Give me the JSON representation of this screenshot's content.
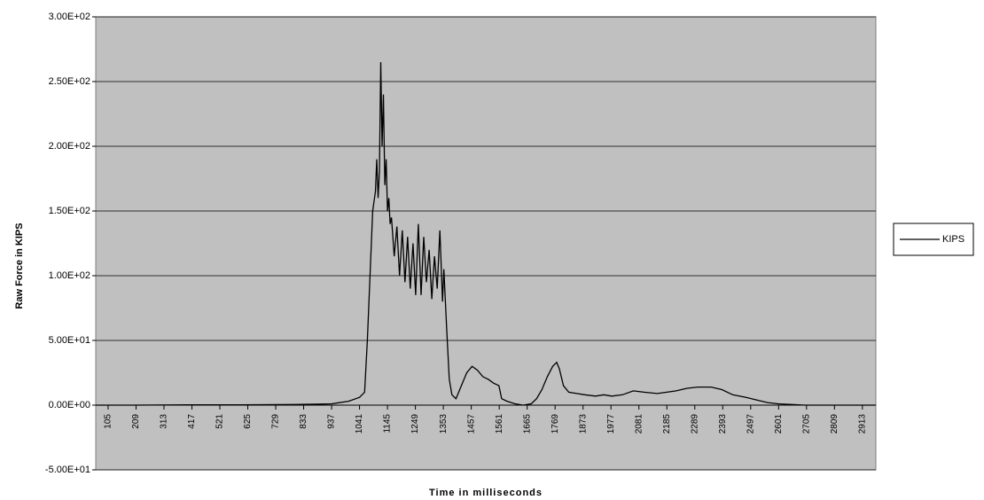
{
  "chart_data": {
    "type": "line",
    "y_label": "Raw Force in KIPS",
    "x_label": "Time in milliseconds",
    "x": [
      59,
      200,
      400,
      600,
      800,
      900,
      937,
      1000,
      1041,
      1060,
      1070,
      1080,
      1090,
      1100,
      1105,
      1110,
      1115,
      1120,
      1125,
      1130,
      1135,
      1140,
      1145,
      1150,
      1155,
      1160,
      1170,
      1180,
      1190,
      1200,
      1210,
      1220,
      1230,
      1240,
      1250,
      1260,
      1270,
      1280,
      1290,
      1300,
      1310,
      1320,
      1330,
      1340,
      1350,
      1355,
      1365,
      1375,
      1385,
      1400,
      1420,
      1440,
      1460,
      1480,
      1500,
      1520,
      1540,
      1560,
      1570,
      1590,
      1620,
      1650,
      1680,
      1700,
      1720,
      1740,
      1760,
      1775,
      1785,
      1800,
      1820,
      1850,
      1880,
      1920,
      1950,
      1980,
      2020,
      2060,
      2100,
      2150,
      2185,
      2220,
      2260,
      2300,
      2350,
      2390,
      2430,
      2480,
      2520,
      2560,
      2600,
      2650,
      2700,
      2800,
      2963
    ],
    "series": [
      {
        "name": "KIPS",
        "color": "#000000",
        "values": [
          0,
          0,
          0.3,
          0.3,
          0.5,
          0.8,
          1,
          3,
          6,
          10,
          50,
          100,
          150,
          165,
          190,
          160,
          180,
          265,
          200,
          240,
          170,
          190,
          150,
          160,
          140,
          145,
          115,
          138,
          100,
          135,
          95,
          130,
          90,
          125,
          85,
          140,
          85,
          130,
          95,
          120,
          82,
          115,
          90,
          135,
          80,
          105,
          60,
          20,
          8,
          5,
          15,
          25,
          30,
          27,
          22,
          20,
          17,
          15,
          5,
          3,
          1,
          0,
          1,
          5,
          12,
          22,
          30,
          33,
          28,
          15,
          10,
          9,
          8,
          7,
          8,
          7,
          8,
          11,
          10,
          9,
          10,
          11,
          13,
          14,
          14,
          12,
          8,
          6,
          4,
          2,
          1,
          0.5,
          0,
          0,
          0
        ]
      }
    ],
    "xlim": [
      59,
      2963
    ],
    "xticks": [
      105,
      209,
      313,
      417,
      521,
      625,
      729,
      833,
      937,
      1041,
      1145,
      1249,
      1353,
      1457,
      1561,
      1665,
      1769,
      1873,
      1977,
      2081,
      2185,
      2289,
      2393,
      2497,
      2601,
      2705,
      2809,
      2913
    ],
    "ylim": [
      -50,
      300
    ],
    "yticks": [
      {
        "value": -50,
        "label": "-5.00E+01"
      },
      {
        "value": 0,
        "label": "0.00E+00"
      },
      {
        "value": 50,
        "label": "5.00E+01"
      },
      {
        "value": 100,
        "label": "1.00E+02"
      },
      {
        "value": 150,
        "label": "1.50E+02"
      },
      {
        "value": 200,
        "label": "2.00E+02"
      },
      {
        "value": 250,
        "label": "2.50E+02"
      },
      {
        "value": 300,
        "label": "3.00E+02"
      }
    ],
    "grid": true
  }
}
